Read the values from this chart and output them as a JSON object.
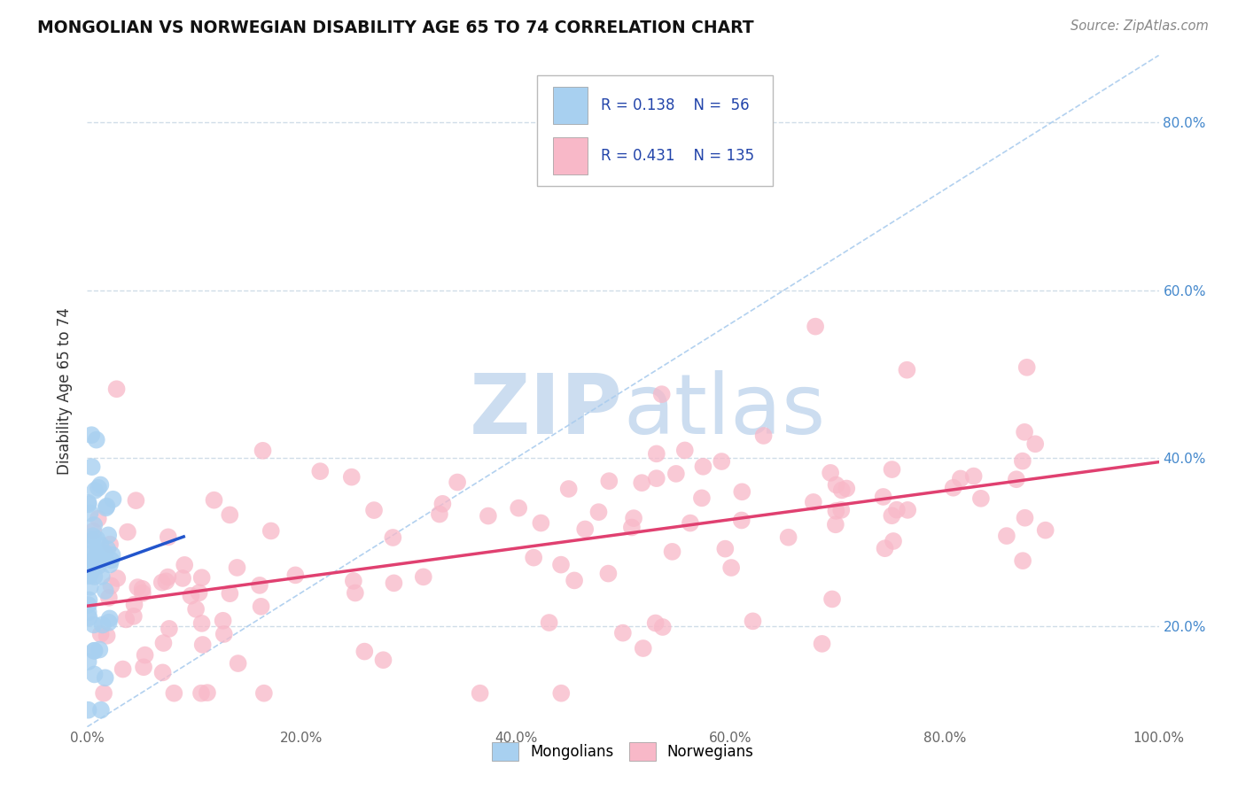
{
  "title": "MONGOLIAN VS NORWEGIAN DISABILITY AGE 65 TO 74 CORRELATION CHART",
  "source": "Source: ZipAtlas.com",
  "ylabel": "Disability Age 65 to 74",
  "xlim": [
    0.0,
    1.0
  ],
  "ylim": [
    0.08,
    0.88
  ],
  "x_ticks": [
    0.0,
    0.2,
    0.4,
    0.6,
    0.8,
    1.0
  ],
  "y_ticks": [
    0.2,
    0.4,
    0.6,
    0.8
  ],
  "mongolian_R": 0.138,
  "mongolian_N": 56,
  "norwegian_R": 0.431,
  "norwegian_N": 135,
  "mongolian_color": "#a8d0f0",
  "norwegian_color": "#f8b8c8",
  "mongolian_line_color": "#2255cc",
  "norwegian_line_color": "#e04070",
  "diagonal_color": "#aaccee",
  "grid_color": "#d0dde8",
  "background_color": "#ffffff",
  "watermark_color": "#ccddf0",
  "title_color": "#111111",
  "source_color": "#888888",
  "tick_color": "#666666",
  "right_tick_color": "#4488cc",
  "legend_text_color": "#2244aa"
}
